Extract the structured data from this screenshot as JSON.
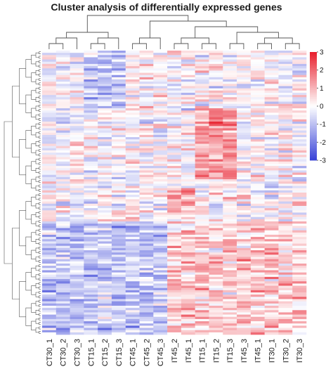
{
  "chart_data": {
    "type": "heatmap",
    "title": "Cluster analysis of differentially expressed genes",
    "columns": [
      "CT30_1",
      "CT30_2",
      "CT30_3",
      "CT15_1",
      "CT15_2",
      "CT15_3",
      "CT45_1",
      "CT45_2",
      "CT45_3",
      "IT45_2",
      "IT45_1",
      "IT15_1",
      "IT15_2",
      "IT15_3",
      "IT45_3",
      "IT45_1",
      "IT30_1",
      "IT30_2",
      "IT30_3"
    ],
    "row_count": 128,
    "value_range": [
      -3,
      3
    ],
    "colorbar": {
      "ticks": [
        3,
        2,
        1,
        0,
        -1,
        -2,
        -3
      ]
    },
    "colors": {
      "low": "#3b45d8",
      "mid": "#ffffff",
      "high": "#e8212f"
    },
    "dendrogram_top": true,
    "dendrogram_left": true
  }
}
